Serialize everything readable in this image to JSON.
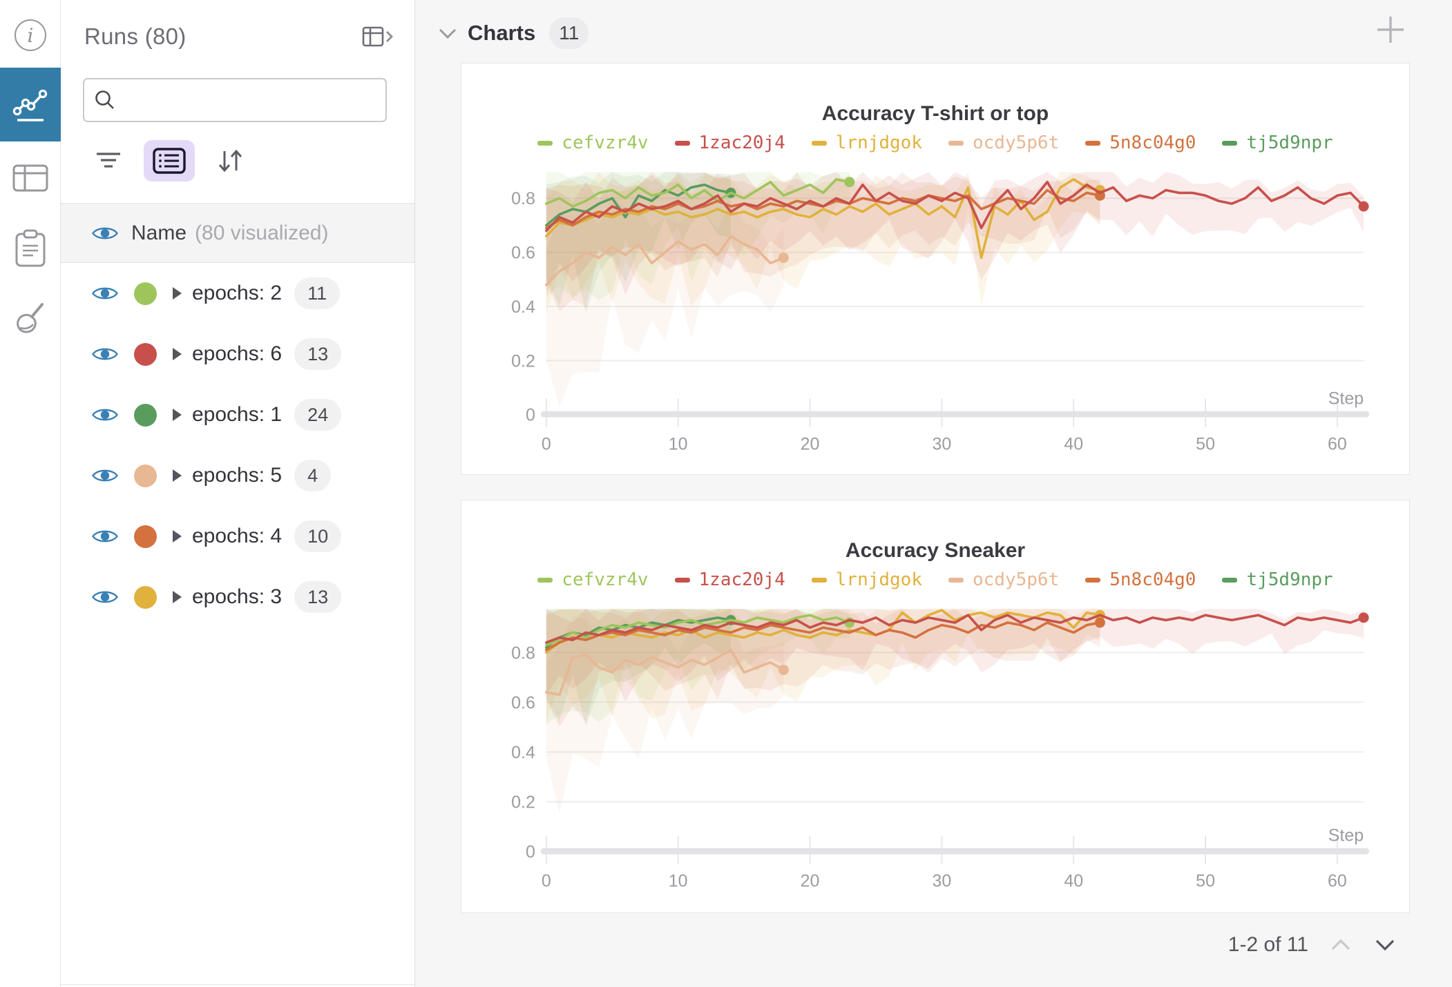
{
  "rail": {
    "items": [
      "info",
      "panels",
      "table",
      "notes",
      "cleanup"
    ]
  },
  "runs_panel": {
    "title": "Runs (80)",
    "search": {
      "value": "",
      "placeholder": ""
    },
    "name_header": {
      "label": "Name",
      "sublabel": "(80 visualized)"
    },
    "groups": [
      {
        "label": "epochs: 2",
        "count": "11",
        "color": "#9EC55C"
      },
      {
        "label": "epochs: 6",
        "count": "13",
        "color": "#C8504B"
      },
      {
        "label": "epochs: 1",
        "count": "24",
        "color": "#5A9C5E"
      },
      {
        "label": "epochs: 5",
        "count": "4",
        "color": "#E8B794"
      },
      {
        "label": "epochs: 4",
        "count": "10",
        "color": "#D3713F"
      },
      {
        "label": "epochs: 3",
        "count": "13",
        "color": "#E0B13C"
      }
    ]
  },
  "charts_section": {
    "title": "Charts",
    "count": "11",
    "pagination": {
      "label": "1-2 of 11"
    }
  },
  "chart_data": [
    {
      "type": "line",
      "title": "Accuracy T-shirt or top",
      "xlabel": "Step",
      "x_ticks": [
        0,
        10,
        20,
        30,
        40,
        50,
        60
      ],
      "y_ticks": [
        0,
        0.2,
        0.4,
        0.6,
        0.8
      ],
      "xlim": [
        0,
        62
      ],
      "ylim": [
        0,
        0.92
      ],
      "grid": true,
      "legend_position": "top",
      "series": [
        {
          "name": "ocdy5p6t",
          "color": "#E8B794",
          "band": {
            "spread_start": 0.32,
            "spread_end": 0.14
          },
          "y": [
            0.48,
            0.53,
            0.56,
            0.6,
            0.58,
            0.62,
            0.59,
            0.63,
            0.56,
            0.6,
            0.64,
            0.61,
            0.63,
            0.59,
            0.66,
            0.63,
            0.61,
            0.56,
            0.58
          ]
        },
        {
          "name": "tj5d9npr",
          "color": "#5A9C5E",
          "band": {
            "spread_start": 0.26,
            "spread_end": 0.1
          },
          "y": [
            0.7,
            0.74,
            0.76,
            0.75,
            0.78,
            0.8,
            0.73,
            0.81,
            0.79,
            0.83,
            0.81,
            0.84,
            0.85,
            0.83,
            0.82
          ]
        },
        {
          "name": "cefvzr4v",
          "color": "#9EC55C",
          "band": {
            "spread_start": 0.28,
            "spread_end": 0.08
          },
          "y": [
            0.78,
            0.8,
            0.77,
            0.79,
            0.82,
            0.83,
            0.8,
            0.84,
            0.81,
            0.82,
            0.85,
            0.8,
            0.83,
            0.79,
            0.82,
            0.8,
            0.83,
            0.86,
            0.81,
            0.83,
            0.85,
            0.82,
            0.87,
            0.86
          ]
        },
        {
          "name": "lrnjdgok",
          "color": "#E0B13C",
          "band": {
            "spread_start": 0.24,
            "spread_end": 0.09
          },
          "y": [
            0.66,
            0.71,
            0.7,
            0.72,
            0.74,
            0.73,
            0.75,
            0.74,
            0.76,
            0.74,
            0.75,
            0.73,
            0.74,
            0.76,
            0.74,
            0.75,
            0.73,
            0.75,
            0.76,
            0.74,
            0.73,
            0.76,
            0.74,
            0.77,
            0.75,
            0.78,
            0.74,
            0.76,
            0.78,
            0.74,
            0.77,
            0.73,
            0.84,
            0.58,
            0.77,
            0.74,
            0.79,
            0.72,
            0.75,
            0.84,
            0.87,
            0.84,
            0.83
          ]
        },
        {
          "name": "5n8c04g0",
          "color": "#D3713F",
          "band": {
            "spread_start": 0.22,
            "spread_end": 0.08
          },
          "y": [
            0.69,
            0.72,
            0.7,
            0.73,
            0.75,
            0.74,
            0.76,
            0.75,
            0.77,
            0.76,
            0.78,
            0.76,
            0.77,
            0.79,
            0.77,
            0.78,
            0.76,
            0.78,
            0.77,
            0.79,
            0.78,
            0.77,
            0.79,
            0.78,
            0.8,
            0.79,
            0.78,
            0.8,
            0.79,
            0.81,
            0.8,
            0.79,
            0.81,
            0.76,
            0.78,
            0.8,
            0.79,
            0.78,
            0.83,
            0.8,
            0.79,
            0.82,
            0.81
          ]
        },
        {
          "name": "1zac20j4",
          "color": "#C8504B",
          "band": {
            "spread_start": 0.2,
            "spread_end": 0.07
          },
          "y": [
            0.68,
            0.73,
            0.71,
            0.75,
            0.73,
            0.77,
            0.75,
            0.78,
            0.76,
            0.77,
            0.79,
            0.76,
            0.78,
            0.81,
            0.75,
            0.78,
            0.77,
            0.8,
            0.78,
            0.76,
            0.79,
            0.77,
            0.8,
            0.78,
            0.85,
            0.79,
            0.82,
            0.79,
            0.78,
            0.81,
            0.79,
            0.82,
            0.8,
            0.69,
            0.78,
            0.83,
            0.76,
            0.8,
            0.86,
            0.78,
            0.81,
            0.85,
            0.82,
            0.84,
            0.79,
            0.81,
            0.8,
            0.83,
            0.82,
            0.82,
            0.81,
            0.79,
            0.78,
            0.8,
            0.84,
            0.79,
            0.81,
            0.84,
            0.8,
            0.78,
            0.81,
            0.82,
            0.77
          ]
        }
      ],
      "legend_order": [
        "cefvzr4v",
        "1zac20j4",
        "lrnjdgok",
        "ocdy5p6t",
        "5n8c04g0",
        "tj5d9npr"
      ]
    },
    {
      "type": "line",
      "title": "Accuracy Sneaker",
      "xlabel": "Step",
      "x_ticks": [
        0,
        10,
        20,
        30,
        40,
        50,
        60
      ],
      "y_ticks": [
        0,
        0.2,
        0.4,
        0.6,
        0.8
      ],
      "xlim": [
        0,
        62
      ],
      "ylim": [
        0,
        1.0
      ],
      "grid": true,
      "legend_position": "top",
      "series": [
        {
          "name": "ocdy5p6t",
          "color": "#E8B794",
          "band": {
            "spread_start": 0.3,
            "spread_end": 0.14
          },
          "y": [
            0.64,
            0.63,
            0.78,
            0.79,
            0.74,
            0.72,
            0.77,
            0.75,
            0.78,
            0.76,
            0.74,
            0.77,
            0.75,
            0.78,
            0.81,
            0.72,
            0.74,
            0.76,
            0.73
          ]
        },
        {
          "name": "tj5d9npr",
          "color": "#5A9C5E",
          "band": {
            "spread_start": 0.26,
            "spread_end": 0.08
          },
          "y": [
            0.82,
            0.86,
            0.88,
            0.87,
            0.9,
            0.89,
            0.91,
            0.9,
            0.92,
            0.91,
            0.93,
            0.92,
            0.93,
            0.94,
            0.93
          ]
        },
        {
          "name": "cefvzr4v",
          "color": "#9EC55C",
          "band": {
            "spread_start": 0.26,
            "spread_end": 0.07
          },
          "y": [
            0.83,
            0.85,
            0.88,
            0.86,
            0.89,
            0.91,
            0.9,
            0.92,
            0.91,
            0.9,
            0.92,
            0.93,
            0.91,
            0.92,
            0.93,
            0.92,
            0.94,
            0.93,
            0.92,
            0.94,
            0.95,
            0.93,
            0.94,
            0.92
          ]
        },
        {
          "name": "lrnjdgok",
          "color": "#E0B13C",
          "band": {
            "spread_start": 0.24,
            "spread_end": 0.08
          },
          "y": [
            0.8,
            0.84,
            0.86,
            0.85,
            0.87,
            0.86,
            0.88,
            0.87,
            0.86,
            0.88,
            0.87,
            0.89,
            0.86,
            0.88,
            0.87,
            0.86,
            0.88,
            0.87,
            0.89,
            0.87,
            0.86,
            0.88,
            0.87,
            0.89,
            0.88,
            0.87,
            0.89,
            0.96,
            0.92,
            0.95,
            0.97,
            0.93,
            0.95,
            0.96,
            0.94,
            0.96,
            0.95,
            0.94,
            0.96,
            0.95,
            0.9,
            0.96,
            0.95
          ]
        },
        {
          "name": "5n8c04g0",
          "color": "#D3713F",
          "band": {
            "spread_start": 0.22,
            "spread_end": 0.07
          },
          "y": [
            0.81,
            0.84,
            0.86,
            0.85,
            0.87,
            0.88,
            0.87,
            0.89,
            0.88,
            0.87,
            0.89,
            0.88,
            0.9,
            0.89,
            0.88,
            0.9,
            0.89,
            0.91,
            0.9,
            0.89,
            0.88,
            0.9,
            0.89,
            0.88,
            0.9,
            0.87,
            0.89,
            0.88,
            0.86,
            0.89,
            0.91,
            0.9,
            0.88,
            0.91,
            0.9,
            0.92,
            0.91,
            0.89,
            0.92,
            0.9,
            0.88,
            0.91,
            0.92
          ]
        },
        {
          "name": "1zac20j4",
          "color": "#C8504B",
          "band": {
            "spread_start": 0.18,
            "spread_end": 0.06
          },
          "y": [
            0.84,
            0.86,
            0.85,
            0.88,
            0.87,
            0.89,
            0.88,
            0.9,
            0.89,
            0.91,
            0.9,
            0.89,
            0.91,
            0.9,
            0.92,
            0.91,
            0.9,
            0.92,
            0.91,
            0.93,
            0.9,
            0.92,
            0.91,
            0.93,
            0.92,
            0.94,
            0.91,
            0.93,
            0.92,
            0.94,
            0.93,
            0.92,
            0.95,
            0.89,
            0.93,
            0.95,
            0.92,
            0.94,
            0.93,
            0.92,
            0.94,
            0.93,
            0.95,
            0.93,
            0.94,
            0.92,
            0.94,
            0.93,
            0.94,
            0.93,
            0.95,
            0.94,
            0.93,
            0.94,
            0.95,
            0.93,
            0.91,
            0.94,
            0.93,
            0.94,
            0.93,
            0.92,
            0.94
          ]
        }
      ],
      "legend_order": [
        "cefvzr4v",
        "1zac20j4",
        "lrnjdgok",
        "ocdy5p6t",
        "5n8c04g0",
        "tj5d9npr"
      ]
    }
  ]
}
